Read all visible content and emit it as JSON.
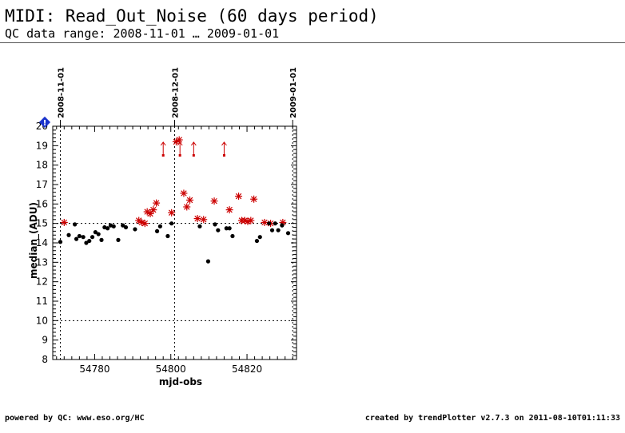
{
  "header": {
    "title": "MIDI: Read_Out_Noise (60 days period)",
    "subtitle": "QC data range: 2008-11-01 … 2009-01-01"
  },
  "footer": {
    "left": "powered by QC: www.eso.org/HC",
    "right": "created by trendPlotter v2.7.3 on 2011-08-10T01:11:33"
  },
  "colors": {
    "normal": "#000000",
    "outlier": "#cc0000",
    "info": "#1a33cc"
  },
  "info_icon": "info-diamond-icon",
  "chart_data": {
    "type": "scatter",
    "xlabel": "mjd-obs",
    "ylabel": "median_(ADU)",
    "xlim": [
      54769,
      54833
    ],
    "ylim": [
      8,
      20
    ],
    "x_ticks": [
      54780,
      54800,
      54820
    ],
    "y_ticks": [
      8,
      9,
      10,
      11,
      12,
      13,
      14,
      15,
      16,
      17,
      18,
      19,
      20
    ],
    "date_markers": [
      {
        "x": 54771,
        "label": "2008-11-01"
      },
      {
        "x": 54801,
        "label": "2008-12-01"
      },
      {
        "x": 54832,
        "label": "2009-01-01"
      }
    ],
    "reference_lines": [
      15,
      10
    ],
    "normal_points": [
      [
        54771.0,
        14.05
      ],
      [
        54773.2,
        14.4
      ],
      [
        54774.8,
        14.95
      ],
      [
        54775.2,
        14.2
      ],
      [
        54776.0,
        14.35
      ],
      [
        54777.0,
        14.3
      ],
      [
        54777.8,
        14.0
      ],
      [
        54778.6,
        14.1
      ],
      [
        54779.4,
        14.3
      ],
      [
        54780.2,
        14.55
      ],
      [
        54781.0,
        14.45
      ],
      [
        54781.8,
        14.15
      ],
      [
        54782.6,
        14.8
      ],
      [
        54783.4,
        14.75
      ],
      [
        54784.2,
        14.9
      ],
      [
        54785.0,
        14.85
      ],
      [
        54786.2,
        14.15
      ],
      [
        54787.4,
        14.9
      ],
      [
        54788.2,
        14.8
      ],
      [
        54790.6,
        14.7
      ],
      [
        54796.4,
        14.6
      ],
      [
        54797.2,
        14.85
      ],
      [
        54799.2,
        14.35
      ],
      [
        54800.2,
        15.0
      ],
      [
        54807.6,
        14.85
      ],
      [
        54809.8,
        13.05
      ],
      [
        54811.6,
        14.95
      ],
      [
        54812.4,
        14.65
      ],
      [
        54814.6,
        14.75
      ],
      [
        54815.4,
        14.75
      ],
      [
        54816.2,
        14.35
      ],
      [
        54822.6,
        14.1
      ],
      [
        54823.4,
        14.3
      ],
      [
        54825.8,
        15.0
      ],
      [
        54826.6,
        14.65
      ],
      [
        54827.4,
        15.0
      ],
      [
        54828.2,
        14.65
      ],
      [
        54829.2,
        14.9
      ],
      [
        54830.8,
        14.5
      ]
    ],
    "outlier_points": [
      [
        54772.0,
        15.05
      ],
      [
        54791.6,
        15.15
      ],
      [
        54792.4,
        15.05
      ],
      [
        54793.2,
        15.0
      ],
      [
        54793.8,
        15.6
      ],
      [
        54794.6,
        15.5
      ],
      [
        54795.4,
        15.7
      ],
      [
        54796.2,
        16.05
      ],
      [
        54800.2,
        15.55
      ],
      [
        54801.4,
        19.2
      ],
      [
        54802.2,
        19.3
      ],
      [
        54803.4,
        16.55
      ],
      [
        54804.2,
        15.85
      ],
      [
        54805.0,
        16.2
      ],
      [
        54807.0,
        15.25
      ],
      [
        54808.6,
        15.2
      ],
      [
        54811.4,
        16.15
      ],
      [
        54815.4,
        15.7
      ],
      [
        54817.8,
        16.4
      ],
      [
        54818.6,
        15.15
      ],
      [
        54819.4,
        15.15
      ],
      [
        54820.2,
        15.1
      ],
      [
        54821.0,
        15.15
      ],
      [
        54821.8,
        16.25
      ],
      [
        54824.6,
        15.05
      ],
      [
        54826.2,
        15.0
      ],
      [
        54829.4,
        15.05
      ]
    ],
    "off_scale_points": [
      54798.0,
      54802.4,
      54806.0,
      54814.0
    ]
  }
}
